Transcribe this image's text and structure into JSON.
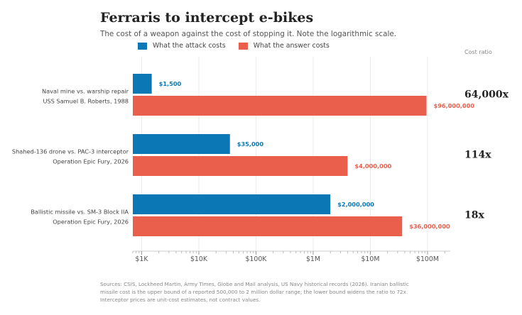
{
  "title": "Ferraris to intercept e-bikes",
  "subtitle": "The cost of a weapon against the cost of stopping it. Note the logarithmic scale.",
  "legend": [
    {
      "label": "What the attack costs",
      "color": "#0b77b4"
    },
    {
      "label": "What the answer costs",
      "color": "#e95f4c"
    }
  ],
  "ratio_header": "Cost ratio",
  "source": "Sources: CSIS, Lockheed Martin, Army Times, Globe and Mail analysis, US Navy historical records (2026). Iranian ballistic missile cost is the upper bound of a reported 500,000 to 2 million dollar range; the lower bound widens the ratio to 72x. Interceptor prices are unit-cost estimates, not contract values.",
  "chart_data": {
    "type": "bar",
    "orientation": "horizontal",
    "scale": "log",
    "xlim": [
      700,
      250000000
    ],
    "xticks": [
      {
        "value": 1000,
        "label": "$1K"
      },
      {
        "value": 10000,
        "label": "$10K"
      },
      {
        "value": 100000,
        "label": "$100K"
      },
      {
        "value": 1000000,
        "label": "$1M"
      },
      {
        "value": 10000000,
        "label": "$10M"
      },
      {
        "value": 100000000,
        "label": "$100M"
      }
    ],
    "grid": true,
    "legend_position": "top-left",
    "categories": [
      {
        "line1": "Naval mine vs. warship repair",
        "line2": "USS Samuel B. Roberts, 1988",
        "ratio": "64,000x"
      },
      {
        "line1": "Shahed-136 drone vs. PAC-3 interceptor",
        "line2": "Operation Epic Fury, 2026",
        "ratio": "114x"
      },
      {
        "line1": "Ballistic missile vs. SM-3 Block IIA",
        "line2": "Operation Epic Fury, 2026",
        "ratio": "18x"
      }
    ],
    "series": [
      {
        "name": "What the attack costs",
        "color": "#0b77b4",
        "values": [
          1500,
          35000,
          2000000
        ],
        "labels": [
          "$1,500",
          "$35,000",
          "$2,000,000"
        ]
      },
      {
        "name": "What the answer costs",
        "color": "#e95f4c",
        "values": [
          96000000,
          4000000,
          36000000
        ],
        "labels": [
          "$96,000,000",
          "$4,000,000",
          "$36,000,000"
        ]
      }
    ]
  }
}
